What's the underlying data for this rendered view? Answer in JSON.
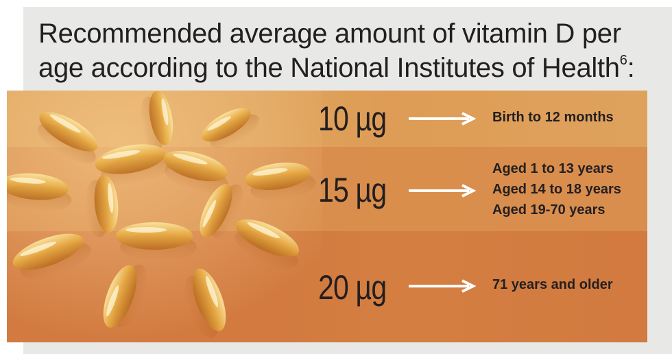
{
  "title": {
    "text": "Recommended average amount of vitamin D per age according to the National Institutes of Health",
    "footnote": "6",
    "suffix": ":"
  },
  "colors": {
    "band_top": "#dea25c",
    "band_middle": "#d98e4e",
    "band_bottom": "#d27a40",
    "panel_background": "#e8e8e6",
    "text": "#231f20",
    "arrow": "#ffffff"
  },
  "rows": [
    {
      "amount": "10 µg",
      "ages": [
        "Birth to 12 months"
      ]
    },
    {
      "amount": "15 µg",
      "ages": [
        "Aged 1 to 13 years",
        "Aged 14 to 18 years",
        "Aged 19-70 years"
      ]
    },
    {
      "amount": "20 µg",
      "ages": [
        "71 years and older"
      ]
    }
  ],
  "image": {
    "subject": "vitamin-d-softgel-capsules"
  }
}
